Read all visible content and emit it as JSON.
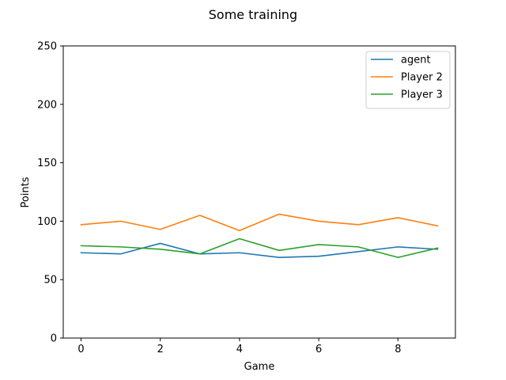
{
  "chart_data": {
    "type": "line",
    "title": "Some training",
    "xlabel": "Game",
    "ylabel": "Points",
    "xlim": [
      -0.45,
      9.45
    ],
    "ylim": [
      0,
      250
    ],
    "xticks": [
      0,
      2,
      4,
      6,
      8
    ],
    "yticks": [
      0,
      50,
      100,
      150,
      200,
      250
    ],
    "x": [
      0,
      1,
      2,
      3,
      4,
      5,
      6,
      7,
      8,
      9
    ],
    "grid": false,
    "legend_position": "top-right",
    "series": [
      {
        "name": "agent",
        "color": "#1f77b4",
        "values": [
          73,
          72,
          81,
          72,
          73,
          69,
          70,
          74,
          78,
          76
        ]
      },
      {
        "name": "Player 2",
        "color": "#ff7f0e",
        "values": [
          97,
          100,
          93,
          105,
          92,
          106,
          100,
          97,
          103,
          96
        ]
      },
      {
        "name": "Player 3",
        "color": "#2ca02c",
        "values": [
          79,
          78,
          76,
          72,
          85,
          75,
          80,
          78,
          69,
          77
        ]
      }
    ]
  }
}
